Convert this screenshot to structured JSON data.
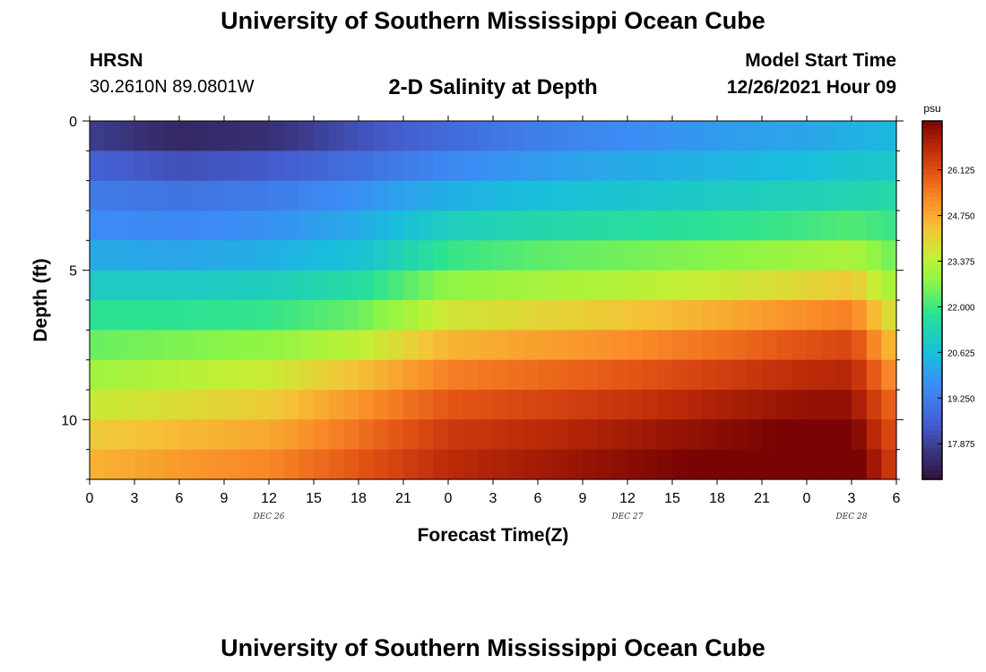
{
  "header": {
    "title": "University of Southern Mississippi Ocean Cube",
    "station": "HRSN",
    "coords": "30.2610N  89.0801W",
    "subtitle": "2-D Salinity at Depth",
    "model_label": "Model Start Time",
    "model_time": "12/26/2021 Hour 09"
  },
  "footer": {
    "title": "University of Southern Mississippi Ocean Cube"
  },
  "chart_data": {
    "type": "heatmap",
    "title": "2-D Salinity at Depth",
    "xlabel": "Forecast Time(Z)",
    "ylabel": "Depth (ft)",
    "x_tick_labels": [
      "0",
      "3",
      "6",
      "9",
      "12",
      "15",
      "18",
      "21",
      "0",
      "3",
      "6",
      "9",
      "12",
      "15",
      "18",
      "21",
      "0",
      "3",
      "6"
    ],
    "x_range_hours": [
      0,
      54
    ],
    "date_labels": [
      {
        "label": "DEC 26",
        "hour": 12
      },
      {
        "label": "DEC 27",
        "hour": 36
      },
      {
        "label": "DEC 28",
        "hour": 51
      }
    ],
    "y_tick_labels": [
      "0",
      "5",
      "10"
    ],
    "y_tick_values": [
      0,
      5,
      10
    ],
    "y_range_ft": [
      0,
      12
    ],
    "depth_bins": 12,
    "time_keyframes_hours": [
      0,
      6,
      12,
      18,
      24,
      30,
      36,
      42,
      48,
      51,
      54
    ],
    "salinity_psu": [
      [
        17.8,
        17.3,
        17.5,
        18.2,
        18.8,
        19.3,
        19.6,
        19.9,
        20.1,
        20.3,
        20.5
      ],
      [
        18.6,
        18.2,
        18.4,
        18.9,
        19.5,
        19.9,
        20.2,
        20.4,
        20.6,
        20.8,
        20.9
      ],
      [
        19.2,
        19.0,
        19.2,
        19.7,
        20.3,
        20.6,
        20.8,
        21.0,
        21.2,
        21.3,
        21.5
      ],
      [
        19.6,
        19.5,
        19.7,
        20.2,
        21.1,
        21.4,
        21.6,
        21.8,
        22.0,
        22.2,
        21.9
      ],
      [
        20.2,
        20.1,
        20.3,
        20.7,
        21.9,
        22.3,
        22.5,
        22.7,
        23.0,
        23.2,
        22.4
      ],
      [
        21.0,
        21.0,
        21.1,
        21.6,
        22.8,
        23.1,
        23.3,
        23.6,
        24.0,
        24.3,
        22.9
      ],
      [
        21.8,
        21.8,
        21.9,
        22.4,
        23.7,
        24.0,
        24.3,
        24.7,
        25.2,
        25.4,
        23.6
      ],
      [
        22.4,
        22.6,
        22.8,
        23.4,
        24.6,
        24.9,
        25.2,
        25.6,
        26.1,
        26.3,
        24.3
      ],
      [
        23.0,
        23.3,
        23.6,
        24.4,
        25.4,
        25.7,
        26.0,
        26.4,
        26.8,
        26.9,
        25.0
      ],
      [
        23.6,
        23.9,
        24.2,
        25.1,
        26.0,
        26.3,
        26.6,
        27.0,
        27.3,
        27.3,
        25.6
      ],
      [
        24.2,
        24.5,
        24.8,
        25.6,
        26.5,
        26.8,
        27.1,
        27.4,
        27.7,
        27.7,
        26.0
      ],
      [
        24.6,
        25.0,
        25.3,
        26.0,
        26.8,
        27.1,
        27.4,
        27.7,
        28.0,
        28.0,
        26.3
      ]
    ],
    "colorbar": {
      "unit": "psu",
      "min": 16.8,
      "max": 27.6,
      "tick_labels": [
        "26.125",
        "24.750",
        "23.375",
        "22.000",
        "20.625",
        "19.250",
        "17.875"
      ],
      "tick_values": [
        26.125,
        24.75,
        23.375,
        22.0,
        20.625,
        19.25,
        17.875
      ]
    }
  }
}
